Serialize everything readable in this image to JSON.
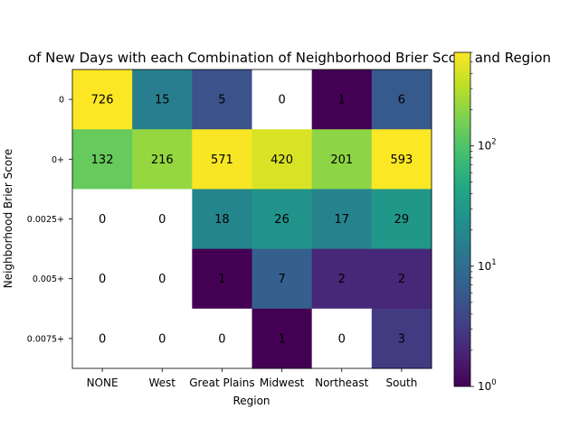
{
  "chart_data": {
    "type": "heatmap",
    "title": "of New Days with each Combination of Neighborhood Brier Score and Region",
    "xlabel": "Region",
    "ylabel": "Neighborhood Brier Score",
    "x_categories": [
      "NONE",
      "West",
      "Great Plains",
      "Midwest",
      "Northeast",
      "South"
    ],
    "y_categories": [
      "0",
      "0+",
      "0.0025+",
      "0.005+",
      "0.0075+"
    ],
    "values": [
      [
        726,
        15,
        5,
        0,
        1,
        6
      ],
      [
        132,
        216,
        571,
        420,
        201,
        593
      ],
      [
        0,
        0,
        18,
        26,
        17,
        29
      ],
      [
        0,
        0,
        1,
        7,
        2,
        2
      ],
      [
        0,
        0,
        0,
        1,
        0,
        3
      ]
    ],
    "zero_cells_color": "#ffffff",
    "colormap": "viridis",
    "color_scale": "log",
    "color_range": [
      1,
      600
    ],
    "colorbar": {
      "tick_labels": [
        "10^0",
        "10^1",
        "10^2"
      ],
      "tick_values": [
        1,
        10,
        100
      ],
      "position": "right"
    }
  }
}
